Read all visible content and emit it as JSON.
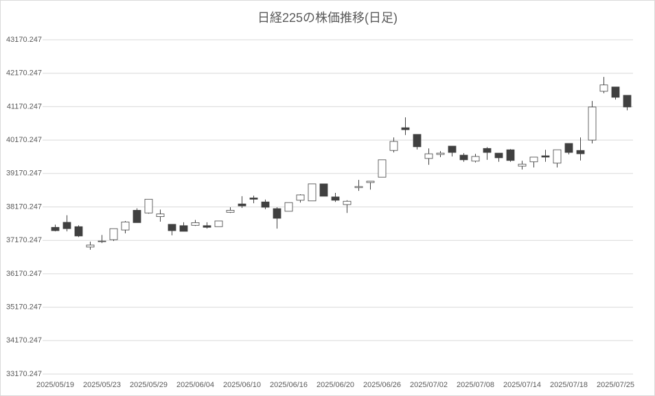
{
  "chart_data": {
    "type": "candlestick",
    "title": "日経225の株価推移(日足)",
    "categories": [
      "2025/05/19",
      null,
      null,
      null,
      "2025/05/23",
      null,
      null,
      null,
      "2025/05/29",
      null,
      null,
      null,
      "2025/06/04",
      null,
      null,
      null,
      "2025/06/10",
      null,
      null,
      null,
      "2025/06/16",
      null,
      null,
      null,
      "2025/06/20",
      null,
      null,
      null,
      "2025/06/26",
      null,
      null,
      null,
      "2025/07/02",
      null,
      null,
      null,
      "2025/07/08",
      null,
      null,
      null,
      "2025/07/14",
      null,
      null,
      null,
      "2025/07/18",
      null,
      null,
      null,
      "2025/07/25",
      null
    ],
    "open": [
      37560,
      37710,
      37580,
      36970,
      37130,
      37190,
      37480,
      38070,
      37990,
      37880,
      37650,
      37610,
      37620,
      37610,
      37580,
      38010,
      38260,
      38440,
      38320,
      38120,
      38040,
      38370,
      38350,
      38860,
      38470,
      38240,
      38750,
      38900,
      39060,
      39860,
      40540,
      40340,
      39620,
      39740,
      39990,
      39720,
      39540,
      39920,
      39780,
      39880,
      39390,
      39520,
      39700,
      39480,
      40070,
      39860,
      40170,
      41630,
      41760,
      41510
    ],
    "high": [
      37640,
      37920,
      37620,
      37130,
      37330,
      37520,
      37750,
      38130,
      38400,
      38090,
      37650,
      37710,
      37780,
      37710,
      37750,
      38160,
      38490,
      38510,
      38390,
      38160,
      38300,
      38550,
      38860,
      38860,
      38590,
      38370,
      38980,
      38940,
      39580,
      40250,
      40850,
      40340,
      39920,
      39840,
      39990,
      39780,
      39760,
      39960,
      39780,
      39900,
      39550,
      39660,
      39880,
      39880,
      40070,
      40250,
      41340,
      42060,
      41760,
      41510
    ],
    "low": [
      37440,
      37440,
      37270,
      36890,
      37090,
      37150,
      37380,
      37700,
      37970,
      37730,
      37320,
      37440,
      37600,
      37520,
      37580,
      37990,
      38140,
      38280,
      38100,
      37520,
      38040,
      38300,
      38350,
      38490,
      38320,
      37990,
      38650,
      38690,
      39060,
      39800,
      40320,
      39890,
      39430,
      39660,
      39680,
      39520,
      39500,
      39580,
      39520,
      39520,
      39290,
      39350,
      39520,
      39350,
      39740,
      39560,
      40070,
      41570,
      41380,
      41060
    ],
    "close": [
      37460,
      37520,
      37300,
      37030,
      37150,
      37520,
      37720,
      37700,
      38400,
      37960,
      37460,
      37440,
      37700,
      37560,
      37750,
      38070,
      38200,
      38400,
      38160,
      37830,
      38300,
      38530,
      38860,
      38490,
      38370,
      38340,
      38780,
      38940,
      39580,
      40130,
      40480,
      39970,
      39760,
      39780,
      39800,
      39580,
      39680,
      39800,
      39640,
      39560,
      39450,
      39660,
      39660,
      39880,
      39800,
      39760,
      41160,
      41820,
      41450,
      41160
    ],
    "up_color": "#ffffff",
    "down_color": "#404040",
    "ylim": [
      33170.247,
      43170.247
    ],
    "yticks": [
      33170.247,
      34170.247,
      35170.247,
      36170.247,
      37170.247,
      38170.247,
      39170.247,
      40170.247,
      41170.247,
      42170.247,
      43170.247
    ],
    "grid": true
  }
}
